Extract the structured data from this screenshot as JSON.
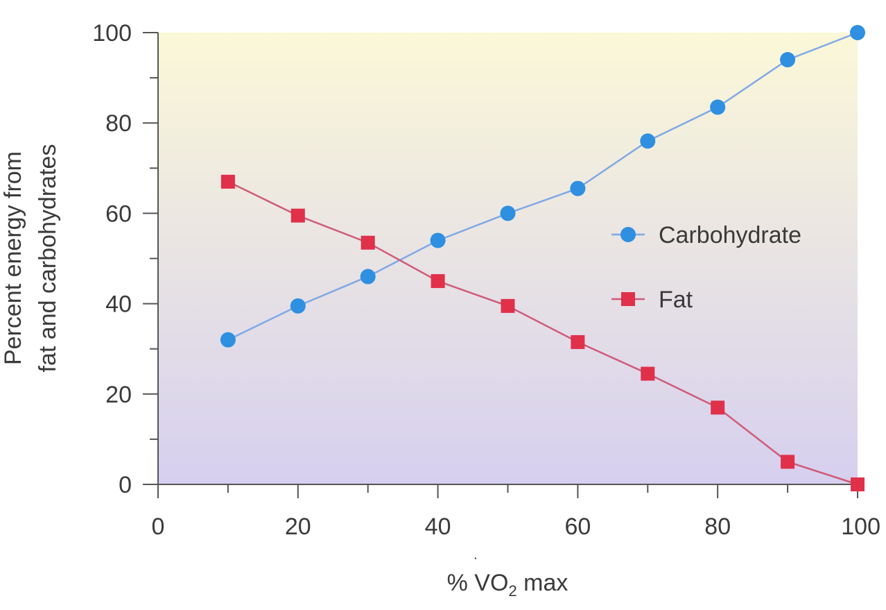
{
  "chart_data": {
    "type": "line",
    "xlabel": "% V̇O₂ max",
    "xlabel_parts": {
      "prefix": "% ",
      "v": "V",
      "o": "O",
      "sub": "2",
      "suffix": " max"
    },
    "ylabel_lines": [
      "Percent energy from",
      "fat and carbohydrates"
    ],
    "xlim": [
      0,
      100
    ],
    "ylim": [
      0,
      100
    ],
    "x_ticks": [
      0,
      20,
      40,
      60,
      80,
      100
    ],
    "y_ticks": [
      0,
      20,
      40,
      60,
      80,
      100
    ],
    "x_tick_labels": [
      "0",
      "20",
      "40",
      "60",
      "80",
      "100"
    ],
    "y_tick_labels": [
      "0",
      "20",
      "40",
      "60",
      "80",
      "100"
    ],
    "legend_position": "right-center",
    "background_gradient": [
      "#fbf8d8",
      "#d6cfef"
    ],
    "series": [
      {
        "name": "Carbohydrate",
        "marker": "circle",
        "color": "#2f8fe0",
        "line_color": "#7fa8e6",
        "x": [
          10,
          20,
          30,
          40,
          50,
          60,
          70,
          80,
          90,
          100
        ],
        "y": [
          32,
          39.5,
          46,
          54,
          60,
          65.5,
          76,
          83.5,
          94,
          100
        ]
      },
      {
        "name": "Fat",
        "marker": "square",
        "color": "#e0304a",
        "line_color": "#d05a78",
        "x": [
          10,
          20,
          30,
          40,
          50,
          60,
          70,
          80,
          90,
          100
        ],
        "y": [
          67,
          59.5,
          53.5,
          45,
          39.5,
          31.5,
          24.5,
          17,
          5,
          0
        ]
      }
    ]
  }
}
